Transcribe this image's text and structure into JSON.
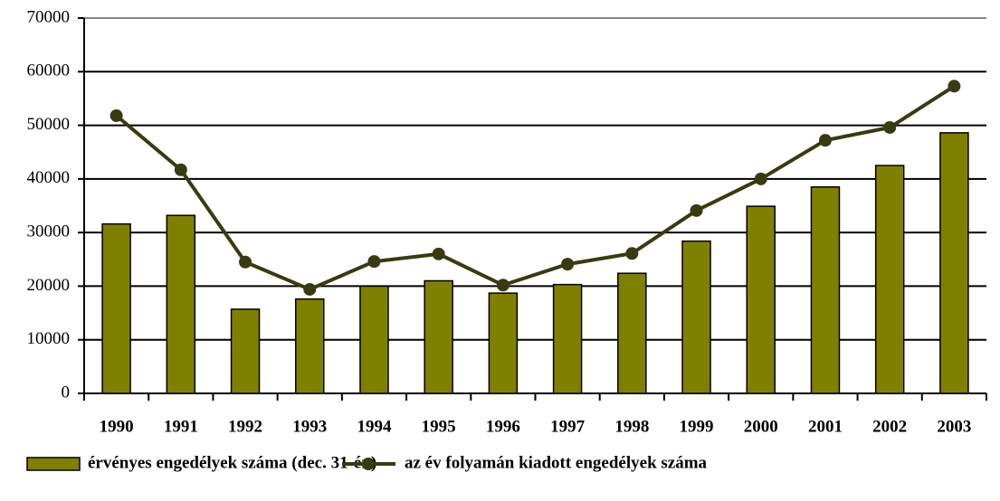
{
  "chart_data": {
    "type": "bar_line",
    "categories": [
      "1990",
      "1991",
      "1992",
      "1993",
      "1994",
      "1995",
      "1996",
      "1997",
      "1998",
      "1999",
      "2000",
      "2001",
      "2002",
      "2003"
    ],
    "series": [
      {
        "name": "érvényes engedélyek száma (dec. 31-én)",
        "type": "bar",
        "color": "#808000",
        "values": [
          31600,
          33200,
          15700,
          17600,
          20000,
          21000,
          18700,
          20300,
          22400,
          28400,
          34900,
          38500,
          42500,
          48600
        ]
      },
      {
        "name": "az év folyamán kiadott engedélyek száma",
        "type": "line",
        "color": "#3a3a12",
        "values": [
          51800,
          41700,
          24500,
          19400,
          24600,
          26000,
          20200,
          24100,
          26100,
          34100,
          40000,
          47200,
          49600,
          57300
        ]
      }
    ],
    "ylim": [
      0,
      70000
    ],
    "yticks": [
      0,
      10000,
      20000,
      30000,
      40000,
      50000,
      60000,
      70000
    ],
    "grid": true
  }
}
